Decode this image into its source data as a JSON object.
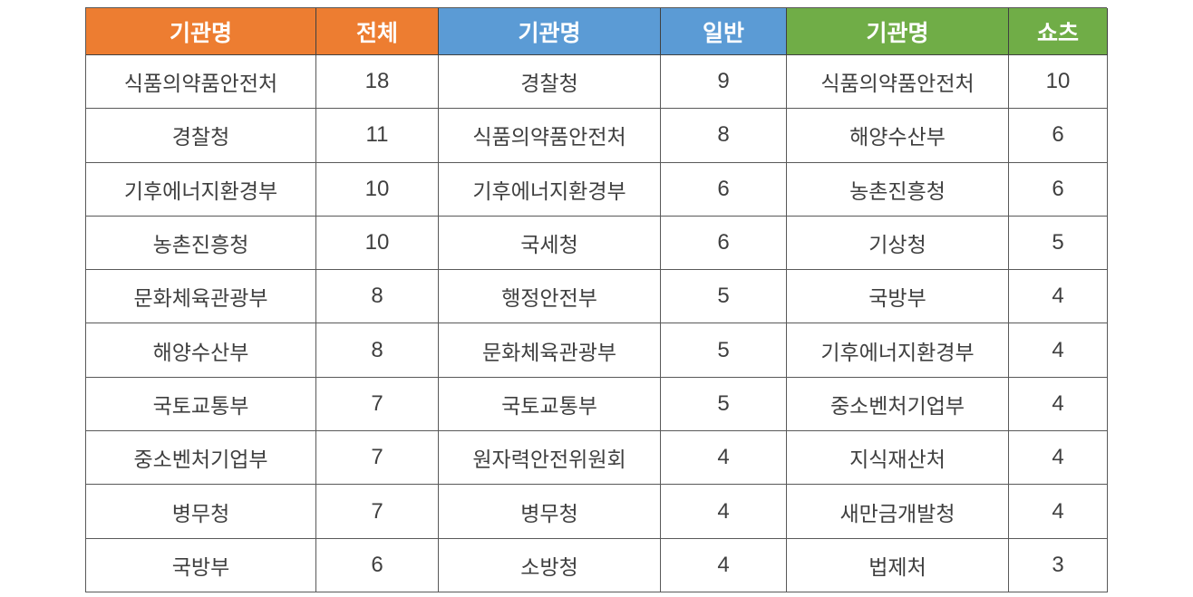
{
  "page": {
    "background": "#ffffff",
    "border_color": "#595959",
    "text_color": "#3f3f3f"
  },
  "chart_data": [
    {
      "type": "table",
      "group": "total",
      "header_bg": "#ED7D31",
      "columns": [
        "기관명",
        "전체"
      ],
      "rows": [
        [
          "식품의약품안전처",
          18
        ],
        [
          "경찰청",
          11
        ],
        [
          "기후에너지환경부",
          10
        ],
        [
          "농촌진흥청",
          10
        ],
        [
          "문화체육관광부",
          8
        ],
        [
          "해양수산부",
          8
        ],
        [
          "국토교통부",
          7
        ],
        [
          "중소벤처기업부",
          7
        ],
        [
          "병무청",
          7
        ],
        [
          "국방부",
          6
        ]
      ]
    },
    {
      "type": "table",
      "group": "general",
      "header_bg": "#5B9BD5",
      "columns": [
        "기관명",
        "일반"
      ],
      "rows": [
        [
          "경찰청",
          9
        ],
        [
          "식품의약품안전처",
          8
        ],
        [
          "기후에너지환경부",
          6
        ],
        [
          "국세청",
          6
        ],
        [
          "행정안전부",
          5
        ],
        [
          "문화체육관광부",
          5
        ],
        [
          "국토교통부",
          5
        ],
        [
          "원자력안전위원회",
          4
        ],
        [
          "병무청",
          4
        ],
        [
          "소방청",
          4
        ]
      ]
    },
    {
      "type": "table",
      "group": "shorts",
      "header_bg": "#70AD47",
      "columns": [
        "기관명",
        "쇼츠"
      ],
      "rows": [
        [
          "식품의약품안전처",
          10
        ],
        [
          "해양수산부",
          6
        ],
        [
          "농촌진흥청",
          6
        ],
        [
          "기상청",
          5
        ],
        [
          "국방부",
          4
        ],
        [
          "기후에너지환경부",
          4
        ],
        [
          "중소벤처기업부",
          4
        ],
        [
          "지식재산처",
          4
        ],
        [
          "새만금개발청",
          4
        ],
        [
          "법제처",
          3
        ]
      ]
    }
  ]
}
